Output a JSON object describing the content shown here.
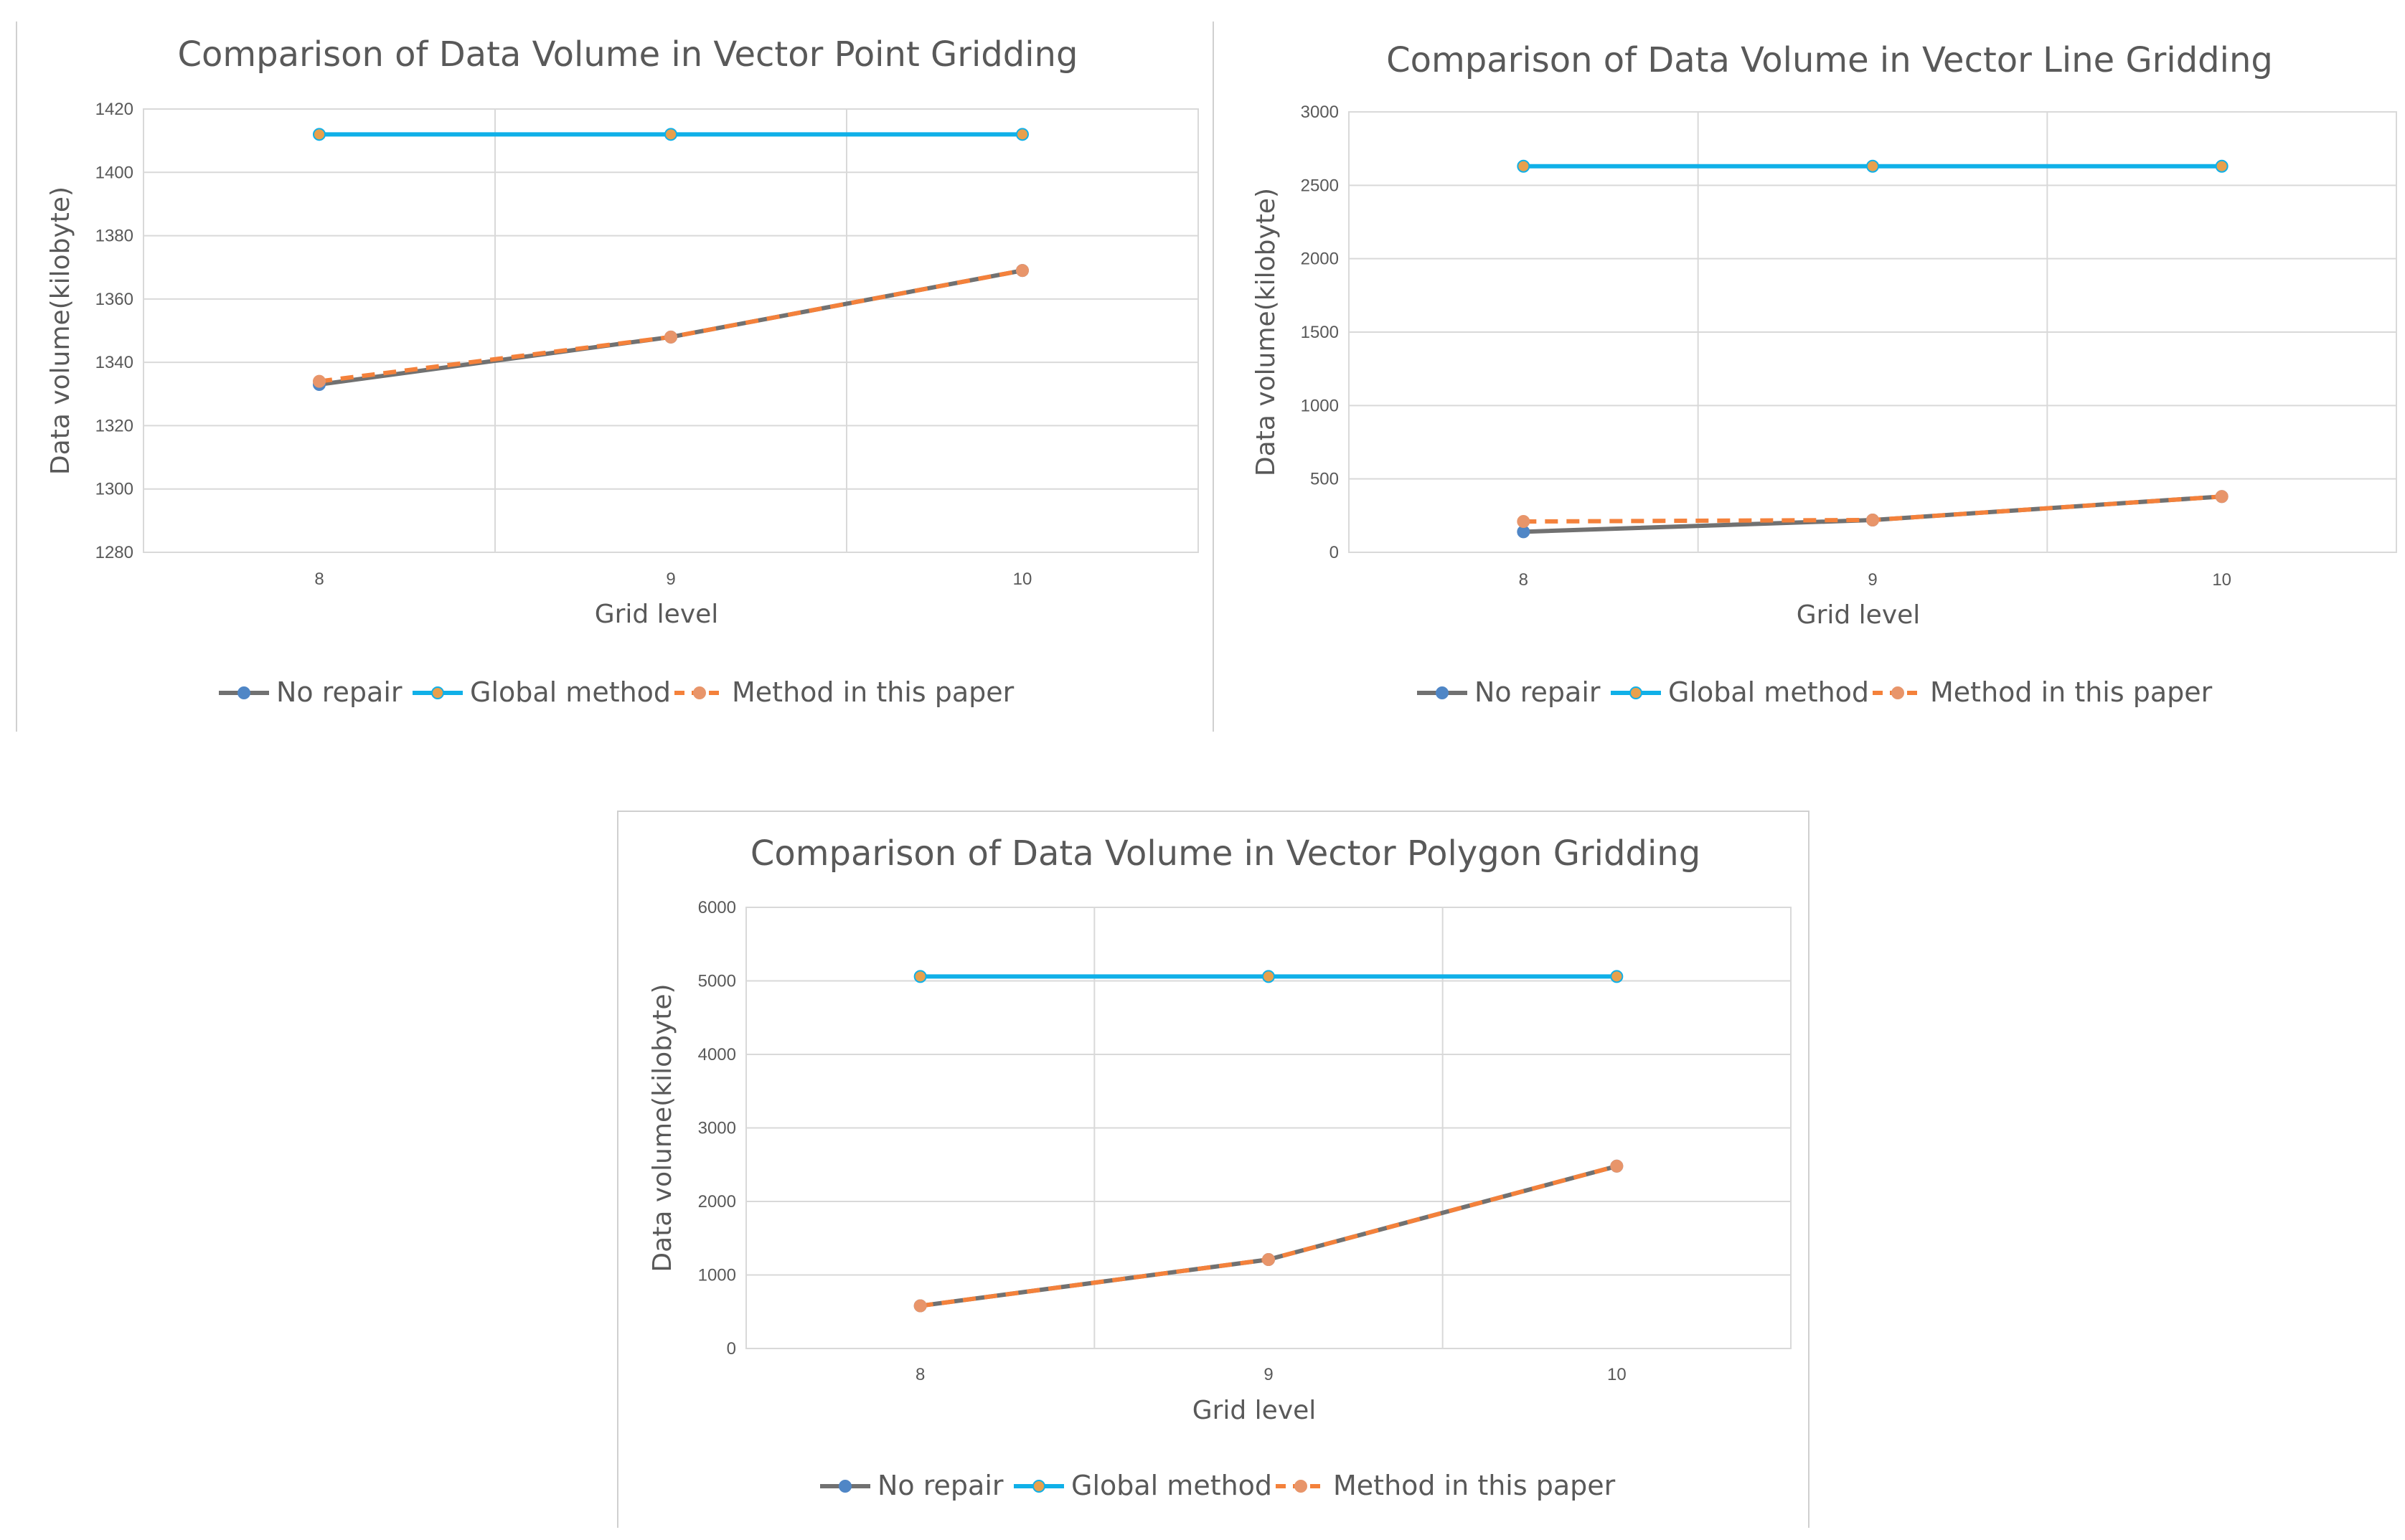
{
  "colors": {
    "no_repair": "#717171",
    "no_repair_marker": "#4f86c6",
    "global_method": "#10b0e8",
    "global_marker": "#e8a04c",
    "method_paper": "#f4813b",
    "method_paper_marker": "#e8956a",
    "grid": "#d9d9d9",
    "text": "#595959"
  },
  "legend": [
    "No repair",
    "Global method",
    "Method in this paper"
  ],
  "chart_data": [
    {
      "type": "line",
      "title": "Comparison of Data Volume in Vector Point Gridding",
      "xlabel": "Grid level",
      "ylabel": "Data volume(kilobyte)",
      "categories": [
        "8",
        "9",
        "10"
      ],
      "ylim": [
        1280,
        1420
      ],
      "yticks": [
        1280,
        1300,
        1320,
        1340,
        1360,
        1380,
        1400,
        1420
      ],
      "grid": true,
      "legend_position": "bottom",
      "series": [
        {
          "name": "No repair",
          "values": [
            1333,
            1348,
            1369
          ]
        },
        {
          "name": "Global method",
          "values": [
            1412,
            1412,
            1412
          ]
        },
        {
          "name": "Method in this paper",
          "values": [
            1334,
            1348,
            1369
          ]
        }
      ]
    },
    {
      "type": "line",
      "title": "Comparison of Data Volume in Vector Line Gridding",
      "xlabel": "Grid level",
      "ylabel": "Data volume(kilobyte)",
      "categories": [
        "8",
        "9",
        "10"
      ],
      "ylim": [
        0,
        3000
      ],
      "yticks": [
        0,
        500,
        1000,
        1500,
        2000,
        2500,
        3000
      ],
      "grid": true,
      "legend_position": "bottom",
      "series": [
        {
          "name": "No repair",
          "values": [
            140,
            220,
            380
          ]
        },
        {
          "name": "Global method",
          "values": [
            2630,
            2630,
            2630
          ]
        },
        {
          "name": "Method in this paper",
          "values": [
            210,
            220,
            380
          ]
        }
      ]
    },
    {
      "type": "line",
      "title": "Comparison of Data Volume in Vector Polygon Gridding",
      "xlabel": "Grid level",
      "ylabel": "Data volume(kilobyte)",
      "categories": [
        "8",
        "9",
        "10"
      ],
      "ylim": [
        0,
        6000
      ],
      "yticks": [
        0,
        1000,
        2000,
        3000,
        4000,
        5000,
        6000
      ],
      "grid": true,
      "legend_position": "bottom",
      "series": [
        {
          "name": "No repair",
          "values": [
            580,
            1210,
            2480
          ]
        },
        {
          "name": "Global method",
          "values": [
            5060,
            5060,
            5060
          ]
        },
        {
          "name": "Method in this paper",
          "values": [
            580,
            1210,
            2480
          ]
        }
      ]
    }
  ]
}
